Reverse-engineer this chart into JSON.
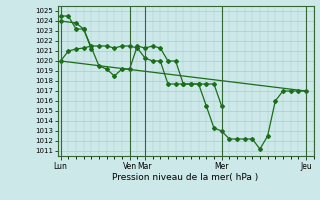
{
  "background_color": "#cce8e8",
  "grid_color": "#aacccc",
  "line_color": "#1a6e1a",
  "xlabel": "Pression niveau de la mer( hPa )",
  "ylim": [
    1010.5,
    1025.5
  ],
  "yticks": [
    1011,
    1012,
    1013,
    1014,
    1015,
    1016,
    1017,
    1018,
    1019,
    1020,
    1021,
    1022,
    1023,
    1024,
    1025
  ],
  "vline_positions": [
    0,
    4.5,
    5.5,
    10.5,
    16
  ],
  "xtick_positions": [
    0,
    4.5,
    5.5,
    10.5,
    16
  ],
  "xtick_labels": [
    "Lun",
    "Ven",
    "Mar",
    "Mer",
    "Jeu"
  ],
  "xlim": [
    -0.2,
    16.2
  ],
  "line1_x": [
    0,
    0.5,
    1.0,
    1.5,
    2.0,
    2.5,
    3.0,
    3.5,
    4.0,
    4.5,
    5.0,
    5.5,
    6.0,
    6.5,
    7.0,
    7.5,
    8.0,
    8.5,
    9.0,
    9.5,
    10.0,
    10.5,
    11.0,
    11.5,
    12.0,
    12.5,
    13.0,
    13.5,
    14.0,
    14.5,
    15.0,
    15.5,
    16.0
  ],
  "line1_y": [
    1020.0,
    1021.0,
    1021.2,
    1021.3,
    1021.5,
    1021.5,
    1021.5,
    1021.3,
    1021.5,
    1021.5,
    1021.3,
    1020.3,
    1020.0,
    1020.0,
    1017.7,
    1017.7,
    1017.7,
    1017.7,
    1017.7,
    1015.5,
    1013.3,
    1013.0,
    1012.2,
    1012.2,
    1012.2,
    1012.2,
    1011.2,
    1012.5,
    1016.0,
    1017.0,
    1017.0,
    1017.0,
    1017.0
  ],
  "line2_x": [
    0,
    1.0,
    1.5,
    2.5,
    3.0,
    3.5,
    4.0,
    4.5,
    5.0,
    5.5,
    6.0,
    6.5,
    7.0,
    7.5,
    8.0,
    8.5,
    9.0,
    9.5,
    10.0,
    10.5
  ],
  "line2_y": [
    1024.0,
    1023.8,
    1023.2,
    1019.5,
    1019.2,
    1018.5,
    1019.2,
    1019.2,
    1021.5,
    1021.3,
    1021.5,
    1021.3,
    1020.0,
    1020.0,
    1017.7,
    1017.7,
    1017.7,
    1017.7,
    1017.7,
    1015.5
  ],
  "line3_x": [
    0,
    0.5,
    1.0,
    1.5,
    2.0
  ],
  "line3_y": [
    1024.5,
    1024.5,
    1023.2,
    1023.2,
    1021.2
  ],
  "trend_x": [
    0,
    16
  ],
  "trend_y": [
    1020.0,
    1017.0
  ]
}
